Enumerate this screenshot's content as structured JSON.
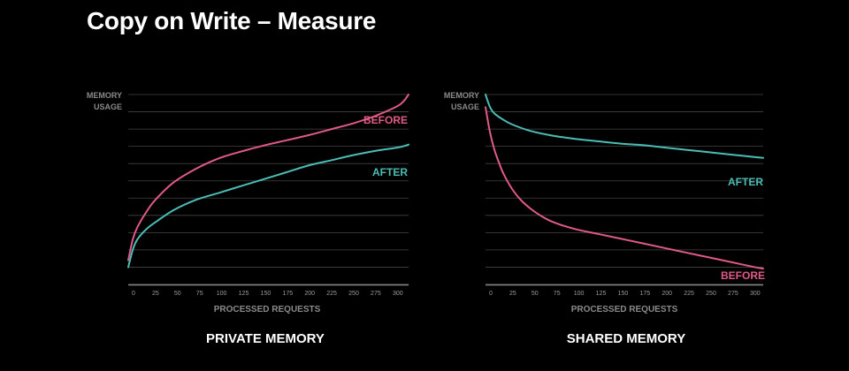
{
  "slide": {
    "title": "Copy on Write – Measure"
  },
  "colors": {
    "before": "#e05a86",
    "after": "#4bbdb5",
    "grid": "#444444",
    "axis": "#888888",
    "background": "#000000"
  },
  "chart_data": [
    {
      "type": "line",
      "caption": "PRIVATE MEMORY",
      "ylabel": [
        "MEMORY",
        "USAGE"
      ],
      "xlabel": "PROCESSED REQUESTS",
      "xticks": [
        "0",
        "25",
        "50",
        "75",
        "100",
        "125",
        "150",
        "175",
        "200",
        "225",
        "250",
        "275",
        "300"
      ],
      "xlim": [
        0,
        310
      ],
      "ylim": [
        0,
        11
      ],
      "grid": true,
      "series": [
        {
          "name": "BEFORE",
          "color": "#e05a86",
          "x": [
            0,
            5,
            10,
            20,
            30,
            50,
            75,
            100,
            125,
            150,
            175,
            200,
            225,
            250,
            275,
            300,
            310
          ],
          "y": [
            1.4,
            2.6,
            3.3,
            4.2,
            4.9,
            5.9,
            6.7,
            7.3,
            7.7,
            8.05,
            8.35,
            8.65,
            9.0,
            9.35,
            9.8,
            10.4,
            11.0
          ]
        },
        {
          "name": "AFTER",
          "color": "#4bbdb5",
          "x": [
            0,
            5,
            10,
            20,
            30,
            50,
            75,
            100,
            125,
            150,
            175,
            200,
            225,
            250,
            275,
            300,
            310
          ],
          "y": [
            1.0,
            2.0,
            2.6,
            3.2,
            3.6,
            4.3,
            4.9,
            5.3,
            5.7,
            6.1,
            6.5,
            6.9,
            7.2,
            7.5,
            7.75,
            7.95,
            8.1
          ]
        }
      ]
    },
    {
      "type": "line",
      "caption": "SHARED MEMORY",
      "ylabel": [
        "MEMORY",
        "USAGE"
      ],
      "xlabel": "PROCESSED REQUESTS",
      "xticks": [
        "0",
        "25",
        "50",
        "75",
        "100",
        "125",
        "150",
        "175",
        "200",
        "225",
        "250",
        "275",
        "300"
      ],
      "xlim": [
        0,
        310
      ],
      "ylim": [
        0,
        12
      ],
      "grid": true,
      "series": [
        {
          "name": "AFTER",
          "color": "#4bbdb5",
          "x": [
            0,
            5,
            10,
            20,
            30,
            50,
            75,
            100,
            125,
            150,
            175,
            200,
            225,
            250,
            275,
            300,
            310
          ],
          "y": [
            12.0,
            11.2,
            10.8,
            10.4,
            10.1,
            9.7,
            9.4,
            9.2,
            9.05,
            8.9,
            8.8,
            8.65,
            8.5,
            8.35,
            8.2,
            8.05,
            8.0
          ]
        },
        {
          "name": "BEFORE",
          "color": "#e05a86",
          "x": [
            0,
            5,
            10,
            15,
            20,
            30,
            40,
            50,
            60,
            75,
            100,
            125,
            150,
            175,
            200,
            225,
            250,
            275,
            300,
            310
          ],
          "y": [
            11.2,
            9.6,
            8.5,
            7.7,
            7.0,
            6.0,
            5.3,
            4.8,
            4.4,
            3.95,
            3.5,
            3.2,
            2.9,
            2.6,
            2.3,
            2.0,
            1.7,
            1.4,
            1.1,
            1.0
          ]
        }
      ]
    }
  ]
}
